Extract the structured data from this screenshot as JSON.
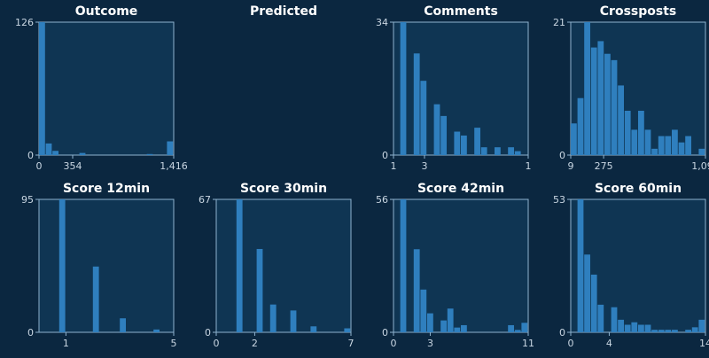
{
  "colors": {
    "background": "#0b2740",
    "panel": "#0f3553",
    "bar": "#2f7fbe",
    "axis": "#8fb3cf",
    "title": "#ffffff",
    "tick": "#c9d6e2"
  },
  "chart_data": [
    {
      "type": "bar",
      "title": "Outcome",
      "ylim": [
        0,
        126
      ],
      "y_tick_labels": [
        "0",
        "126"
      ],
      "x_tick_labels": [
        "0",
        "354",
        "1,416"
      ],
      "x_tick_positions": [
        0,
        354,
        1416
      ],
      "xlim": [
        0,
        1416
      ],
      "bin_count": 20,
      "values": [
        126,
        11,
        4,
        0,
        0,
        0,
        2,
        0,
        0,
        0,
        0,
        0,
        0,
        0,
        0,
        0,
        1,
        0,
        0,
        13
      ]
    },
    {
      "type": "bar",
      "title": "Predicted",
      "ylim": [
        0,
        1
      ],
      "y_tick_labels": [],
      "x_tick_labels": [],
      "x_tick_positions": [],
      "xlim": [
        0,
        1
      ],
      "bin_count": 0,
      "values": []
    },
    {
      "type": "bar",
      "title": "Comments",
      "ylim": [
        0,
        34
      ],
      "y_tick_labels": [
        "0",
        "34"
      ],
      "x_tick_labels": [
        "1",
        "3",
        "1"
      ],
      "x_tick_positions": [
        0,
        2.3,
        10
      ],
      "xlim": [
        0,
        10
      ],
      "bin_count": 20,
      "values": [
        0,
        34,
        0,
        26,
        19,
        0,
        13,
        10,
        0,
        6,
        5,
        0,
        7,
        2,
        0,
        2,
        0,
        2,
        1,
        0
      ]
    },
    {
      "type": "bar",
      "title": "Crossposts",
      "ylim": [
        0,
        21
      ],
      "y_tick_labels": [
        "0",
        "21"
      ],
      "x_tick_labels": [
        "9",
        "275",
        "1,099"
      ],
      "x_tick_positions": [
        9,
        275,
        1099
      ],
      "xlim": [
        9,
        1099
      ],
      "bin_count": 20,
      "values": [
        5,
        9,
        21,
        17,
        18,
        16,
        15,
        11,
        7,
        4,
        7,
        4,
        1,
        3,
        3,
        4,
        2,
        3,
        0,
        1
      ]
    },
    {
      "type": "bar",
      "title": "Score 12min",
      "ylim": [
        0,
        95
      ],
      "y_tick_labels": [
        "0",
        "95"
      ],
      "x_tick_labels": [
        "1",
        "5"
      ],
      "x_tick_positions": [
        1,
        5
      ],
      "xlim": [
        0,
        5
      ],
      "bin_count": 20,
      "values": [
        0,
        0,
        0,
        95,
        0,
        0,
        0,
        0,
        47,
        0,
        0,
        0,
        10,
        0,
        0,
        0,
        0,
        2,
        0,
        0
      ]
    },
    {
      "type": "bar",
      "title": "Score 30min",
      "ylim": [
        0,
        67
      ],
      "y_tick_labels": [
        "0",
        "67"
      ],
      "x_tick_labels": [
        "0",
        "2",
        "7"
      ],
      "x_tick_positions": [
        0,
        2,
        7
      ],
      "xlim": [
        0,
        7
      ],
      "bin_count": 20,
      "values": [
        0,
        0,
        0,
        67,
        0,
        0,
        42,
        0,
        14,
        0,
        0,
        11,
        0,
        0,
        3,
        0,
        0,
        0,
        0,
        2
      ]
    },
    {
      "type": "bar",
      "title": "Score 42min",
      "ylim": [
        0,
        56
      ],
      "y_tick_labels": [
        "0",
        "56"
      ],
      "x_tick_labels": [
        "0",
        "3",
        "11"
      ],
      "x_tick_positions": [
        0,
        3,
        11
      ],
      "xlim": [
        0,
        11
      ],
      "bin_count": 20,
      "values": [
        0,
        56,
        0,
        35,
        18,
        8,
        0,
        5,
        10,
        2,
        3,
        0,
        0,
        0,
        0,
        0,
        0,
        3,
        1,
        4
      ]
    },
    {
      "type": "bar",
      "title": "Score 60min",
      "ylim": [
        0,
        53
      ],
      "y_tick_labels": [
        "0",
        "53"
      ],
      "x_tick_labels": [
        "0",
        "4",
        "14"
      ],
      "x_tick_positions": [
        0,
        4,
        14
      ],
      "xlim": [
        0,
        14
      ],
      "bin_count": 20,
      "values": [
        0,
        53,
        31,
        23,
        11,
        0,
        10,
        5,
        3,
        4,
        3,
        3,
        1,
        1,
        1,
        1,
        0,
        1,
        2,
        5
      ]
    }
  ]
}
